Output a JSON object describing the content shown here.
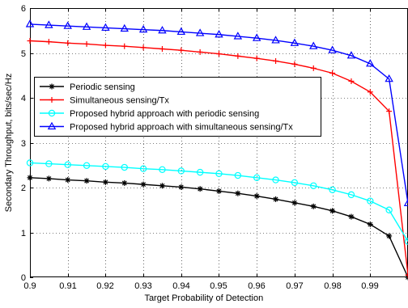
{
  "chart_data": {
    "type": "line",
    "title": "",
    "xlabel": "Target Probability of Detection",
    "ylabel": "Secondary Throughput, bits/sec/Hz",
    "xlim": [
      0.9,
      1.0
    ],
    "ylim": [
      0,
      6
    ],
    "xticks": [
      0.9,
      0.91,
      0.92,
      0.93,
      0.94,
      0.95,
      0.96,
      0.97,
      0.98,
      0.99
    ],
    "xtick_labels": [
      "0.9",
      "0.91",
      "0.92",
      "0.93",
      "0.94",
      "0.95",
      "0.96",
      "0.97",
      "0.98",
      "0.99"
    ],
    "yticks": [
      0,
      1,
      2,
      3,
      4,
      5,
      6
    ],
    "ytick_labels": [
      "0",
      "1",
      "2",
      "3",
      "4",
      "5",
      "6"
    ],
    "grid": true,
    "legend_position": "center-left",
    "x": [
      0.9,
      0.905,
      0.91,
      0.915,
      0.92,
      0.925,
      0.93,
      0.935,
      0.94,
      0.945,
      0.95,
      0.955,
      0.96,
      0.965,
      0.97,
      0.975,
      0.98,
      0.985,
      0.99,
      0.995,
      1.0
    ],
    "series": [
      {
        "name": "Periodic sensing",
        "color": "#000000",
        "marker": "star",
        "values": [
          2.22,
          2.2,
          2.17,
          2.15,
          2.12,
          2.1,
          2.07,
          2.04,
          2.01,
          1.97,
          1.92,
          1.87,
          1.81,
          1.74,
          1.66,
          1.58,
          1.48,
          1.35,
          1.18,
          0.92,
          0.0
        ]
      },
      {
        "name": "Simultaneous sensing/Tx",
        "color": "#ff0000",
        "marker": "plus",
        "values": [
          5.27,
          5.25,
          5.22,
          5.2,
          5.17,
          5.15,
          5.12,
          5.09,
          5.06,
          5.02,
          4.98,
          4.93,
          4.88,
          4.82,
          4.75,
          4.66,
          4.55,
          4.37,
          4.13,
          3.7,
          0.05
        ]
      },
      {
        "name": "Proposed hybrid approach with periodic sensing",
        "color": "#00ffff",
        "marker": "circle",
        "values": [
          2.55,
          2.53,
          2.51,
          2.49,
          2.47,
          2.45,
          2.42,
          2.4,
          2.37,
          2.34,
          2.31,
          2.27,
          2.22,
          2.17,
          2.11,
          2.04,
          1.95,
          1.84,
          1.7,
          1.5,
          0.8
        ]
      },
      {
        "name": "Proposed hybrid approach with simultaneous sensing/Tx",
        "color": "#0000ff",
        "marker": "triangle",
        "values": [
          5.64,
          5.62,
          5.6,
          5.58,
          5.56,
          5.54,
          5.52,
          5.5,
          5.47,
          5.44,
          5.41,
          5.37,
          5.33,
          5.28,
          5.22,
          5.15,
          5.06,
          4.94,
          4.76,
          4.42,
          1.65
        ]
      }
    ]
  }
}
